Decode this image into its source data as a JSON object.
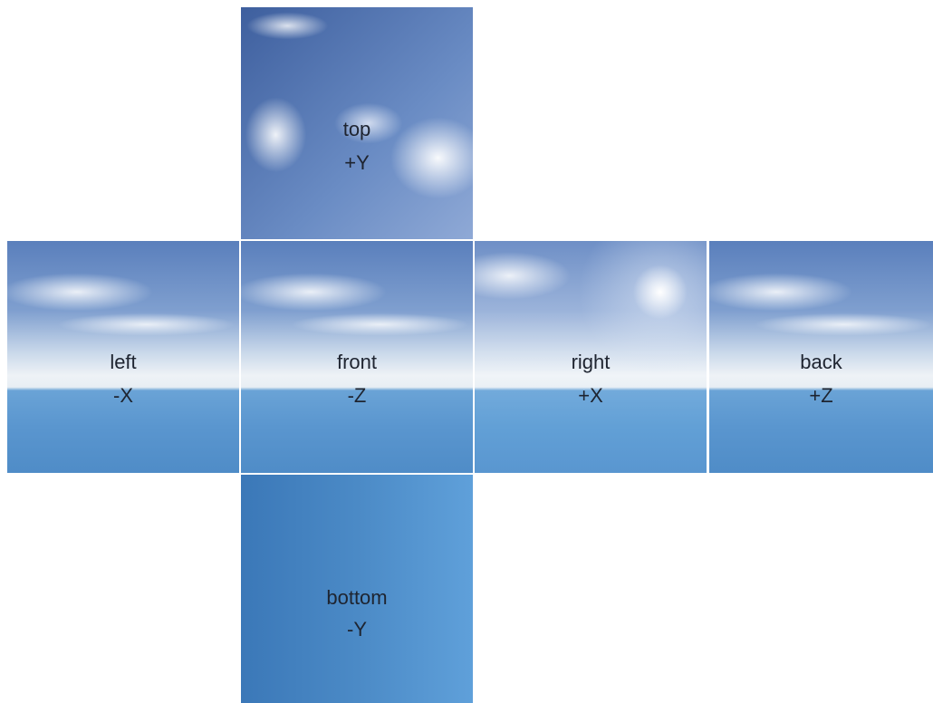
{
  "faces": [
    {
      "name": "top",
      "axis": "+Y"
    },
    {
      "name": "left",
      "axis": "-X"
    },
    {
      "name": "front",
      "axis": "-Z"
    },
    {
      "name": "right",
      "axis": "+X"
    },
    {
      "name": "back",
      "axis": "+Z"
    },
    {
      "name": "bottom",
      "axis": "-Y"
    }
  ]
}
